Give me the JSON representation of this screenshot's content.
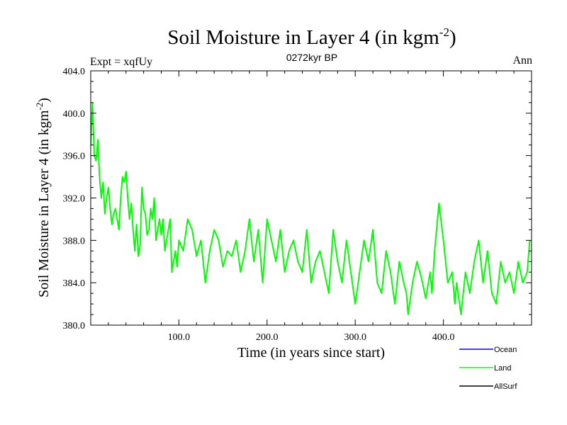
{
  "title_main": "Soil Moisture in Layer 4 (in kgm",
  "title_sup": "-2",
  "title_close": ")",
  "expt_label": "Expt = xqfUy",
  "period_label": "0272kyr BP",
  "season_label": "Ann",
  "colors": {
    "ocean": "#0000ff",
    "land": "#00ff00",
    "allsurf": "#000000",
    "axis": "#000000",
    "background": "#ffffff"
  },
  "chart_data": {
    "type": "line",
    "title": "Soil Moisture in Layer 4 (in kgm-2)",
    "xlabel": "Time (in years since start)",
    "ylabel_main": "Soil Moisture in Layer 4 (in kgm",
    "ylabel_sup": "-2",
    "ylabel_close": ")",
    "xlim": [
      0,
      500
    ],
    "ylim": [
      380,
      404
    ],
    "x_ticks": [
      100,
      200,
      300,
      400
    ],
    "x_tick_labels": [
      "100.0",
      "200.0",
      "300.0",
      "400.0"
    ],
    "y_ticks": [
      380,
      384,
      388,
      392,
      396,
      400,
      404
    ],
    "y_tick_labels": [
      "380.0",
      "384.0",
      "388.0",
      "392.0",
      "396.0",
      "400.0",
      "404.0"
    ],
    "legend": [
      "Ocean",
      "Land",
      "AllSurf"
    ],
    "legend_position": "bottom-right",
    "series": [
      {
        "name": "Land",
        "x": [
          0,
          2,
          4,
          6,
          8,
          10,
          12,
          14,
          16,
          18,
          20,
          22,
          24,
          26,
          28,
          30,
          32,
          34,
          36,
          38,
          40,
          42,
          44,
          46,
          48,
          50,
          52,
          54,
          56,
          58,
          60,
          62,
          64,
          66,
          68,
          70,
          72,
          74,
          76,
          78,
          80,
          82,
          84,
          86,
          88,
          90,
          92,
          94,
          96,
          98,
          100,
          105,
          110,
          115,
          120,
          125,
          130,
          135,
          140,
          145,
          150,
          155,
          160,
          165,
          170,
          175,
          180,
          185,
          190,
          195,
          200,
          205,
          210,
          215,
          220,
          225,
          230,
          235,
          240,
          245,
          250,
          255,
          260,
          265,
          270,
          275,
          280,
          285,
          290,
          295,
          300,
          305,
          310,
          315,
          320,
          325,
          330,
          335,
          340,
          345,
          350,
          355,
          358,
          360,
          365,
          370,
          375,
          380,
          385,
          387,
          390,
          395,
          400,
          405,
          410,
          413,
          415,
          420,
          425,
          430,
          435,
          440,
          445,
          450,
          455,
          460,
          465,
          470,
          475,
          480,
          485,
          490,
          495,
          498
        ],
        "values": [
          397,
          401,
          396,
          395.5,
          397.5,
          394,
          392,
          393.5,
          390.5,
          392,
          393,
          391,
          389.5,
          390.5,
          391,
          390,
          389,
          392,
          394,
          393.5,
          394.5,
          392,
          390,
          391.5,
          389,
          387,
          389.5,
          386.5,
          387.5,
          393,
          391,
          390.5,
          388.5,
          389,
          391,
          390,
          392,
          388,
          389,
          390,
          388.5,
          390,
          387,
          388,
          389,
          390,
          385,
          386,
          387,
          385.5,
          388,
          387,
          390,
          389,
          386.5,
          388,
          384,
          387,
          389,
          388,
          385.5,
          387,
          386.5,
          388,
          385,
          387,
          390,
          386,
          389,
          384,
          390,
          388,
          386,
          389,
          385,
          387,
          388,
          386,
          385,
          389,
          384,
          386,
          387,
          385,
          383,
          389,
          386,
          384,
          388,
          385,
          382,
          385,
          388,
          386,
          389,
          384,
          383,
          387,
          385,
          382,
          386,
          384,
          383,
          381,
          384,
          386,
          384.5,
          382.5,
          385,
          383,
          387,
          391.5,
          388,
          384,
          385,
          382,
          384,
          381,
          385,
          383,
          386,
          388,
          384,
          387,
          383,
          382,
          386,
          384,
          385,
          383,
          386,
          384,
          385,
          388
        ]
      }
    ]
  }
}
